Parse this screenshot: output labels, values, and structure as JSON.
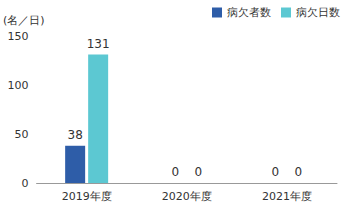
{
  "chart_data": {
    "type": "bar",
    "ylabel": "(名／日)",
    "categories": [
      "2019年度",
      "2020年度",
      "2021年度"
    ],
    "series": [
      {
        "name": "病欠者数",
        "color": "#2e5da8",
        "values": [
          38,
          0,
          0
        ]
      },
      {
        "name": "病欠日数",
        "color": "#5cc8d2",
        "values": [
          131,
          0,
          0
        ]
      }
    ],
    "ylim": [
      0,
      150
    ],
    "yticks": [
      0,
      50,
      100,
      150
    ],
    "grid": false,
    "legend": "top-right",
    "data_labels": true
  }
}
